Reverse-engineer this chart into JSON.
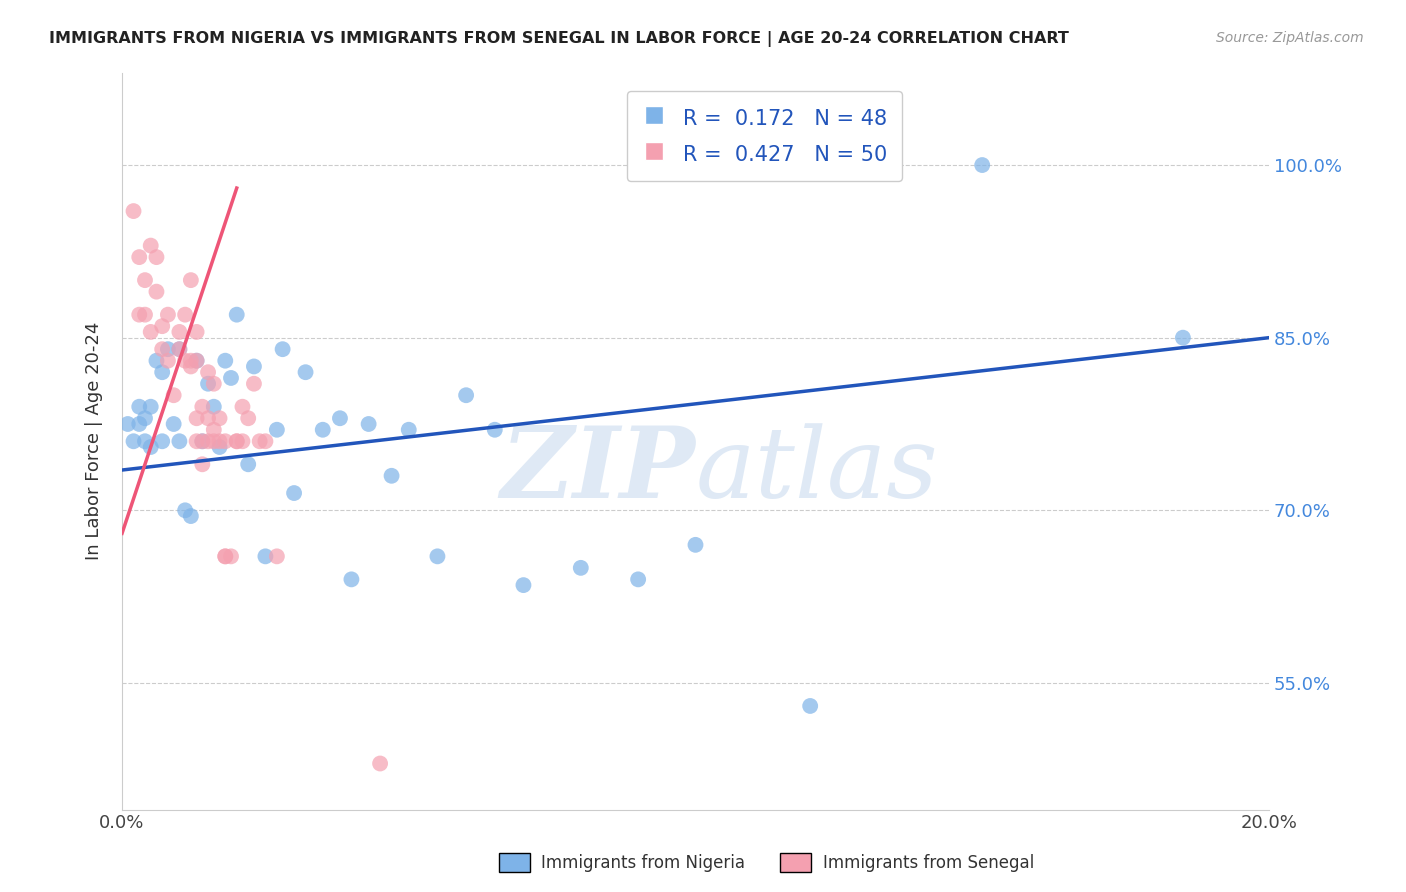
{
  "title": "IMMIGRANTS FROM NIGERIA VS IMMIGRANTS FROM SENEGAL IN LABOR FORCE | AGE 20-24 CORRELATION CHART",
  "source": "Source: ZipAtlas.com",
  "ylabel": "In Labor Force | Age 20-24",
  "xlim": [
    0.0,
    0.2
  ],
  "ylim": [
    0.44,
    1.08
  ],
  "xtick_positions": [
    0.0,
    0.04,
    0.08,
    0.12,
    0.16,
    0.2
  ],
  "xticklabels": [
    "0.0%",
    "",
    "",
    "",
    "",
    "20.0%"
  ],
  "ytick_positions": [
    0.55,
    0.7,
    0.85,
    1.0
  ],
  "ytick_labels": [
    "55.0%",
    "70.0%",
    "85.0%",
    "100.0%"
  ],
  "nigeria_R": 0.172,
  "nigeria_N": 48,
  "senegal_R": 0.427,
  "senegal_N": 50,
  "nigeria_color": "#7EB3E8",
  "senegal_color": "#F4A0B0",
  "nigeria_line_color": "#2255BB",
  "senegal_line_color": "#EE5577",
  "legend_nigeria_label": "Immigrants from Nigeria",
  "legend_senegal_label": "Immigrants from Senegal",
  "watermark_zip": "ZIP",
  "watermark_atlas": "atlas",
  "grid_color": "#cccccc",
  "nigeria_x": [
    0.001,
    0.002,
    0.003,
    0.003,
    0.004,
    0.004,
    0.005,
    0.005,
    0.006,
    0.007,
    0.007,
    0.008,
    0.009,
    0.01,
    0.01,
    0.011,
    0.012,
    0.013,
    0.014,
    0.015,
    0.016,
    0.017,
    0.018,
    0.019,
    0.02,
    0.022,
    0.023,
    0.025,
    0.027,
    0.028,
    0.03,
    0.032,
    0.035,
    0.038,
    0.04,
    0.043,
    0.047,
    0.05,
    0.055,
    0.06,
    0.065,
    0.07,
    0.08,
    0.09,
    0.1,
    0.12,
    0.15,
    0.185
  ],
  "nigeria_y": [
    0.775,
    0.76,
    0.79,
    0.775,
    0.78,
    0.76,
    0.79,
    0.755,
    0.83,
    0.82,
    0.76,
    0.84,
    0.775,
    0.84,
    0.76,
    0.7,
    0.695,
    0.83,
    0.76,
    0.81,
    0.79,
    0.755,
    0.83,
    0.815,
    0.87,
    0.74,
    0.825,
    0.66,
    0.77,
    0.84,
    0.715,
    0.82,
    0.77,
    0.78,
    0.64,
    0.775,
    0.73,
    0.77,
    0.66,
    0.8,
    0.77,
    0.635,
    0.65,
    0.64,
    0.67,
    0.53,
    1.0,
    0.85
  ],
  "senegal_x": [
    0.002,
    0.003,
    0.003,
    0.004,
    0.004,
    0.005,
    0.005,
    0.006,
    0.006,
    0.007,
    0.007,
    0.008,
    0.008,
    0.009,
    0.01,
    0.01,
    0.011,
    0.011,
    0.012,
    0.012,
    0.012,
    0.013,
    0.013,
    0.013,
    0.013,
    0.014,
    0.014,
    0.014,
    0.015,
    0.015,
    0.015,
    0.016,
    0.016,
    0.016,
    0.017,
    0.017,
    0.018,
    0.018,
    0.018,
    0.019,
    0.02,
    0.02,
    0.021,
    0.021,
    0.022,
    0.023,
    0.024,
    0.025,
    0.027,
    0.045
  ],
  "senegal_y": [
    0.96,
    0.92,
    0.87,
    0.9,
    0.87,
    0.93,
    0.855,
    0.92,
    0.89,
    0.86,
    0.84,
    0.87,
    0.83,
    0.8,
    0.855,
    0.84,
    0.87,
    0.83,
    0.825,
    0.83,
    0.9,
    0.855,
    0.83,
    0.78,
    0.76,
    0.79,
    0.76,
    0.74,
    0.82,
    0.78,
    0.76,
    0.77,
    0.76,
    0.81,
    0.78,
    0.76,
    0.76,
    0.66,
    0.66,
    0.66,
    0.76,
    0.76,
    0.79,
    0.76,
    0.78,
    0.81,
    0.76,
    0.76,
    0.66,
    0.48
  ],
  "nigeria_trend_x": [
    0.0,
    0.2
  ],
  "nigeria_trend_y": [
    0.735,
    0.85
  ],
  "senegal_trend_x": [
    0.0,
    0.02
  ],
  "senegal_trend_y": [
    0.68,
    0.98
  ]
}
